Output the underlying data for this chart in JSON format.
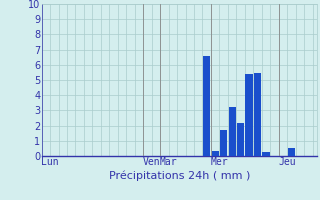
{
  "xlabel": "Précipitations 24h ( mm )",
  "background_color": "#d4eeee",
  "bar_color": "#1a4fcc",
  "ylim": [
    0,
    10
  ],
  "yticks": [
    0,
    1,
    2,
    3,
    4,
    5,
    6,
    7,
    8,
    9,
    10
  ],
  "day_labels": [
    "Lun",
    "Ven",
    "Mar",
    "Mer",
    "Jeu"
  ],
  "day_positions": [
    0.5,
    12.5,
    14.5,
    20.5,
    28.5
  ],
  "xlim": [
    -0.5,
    32
  ],
  "bars": [
    0,
    0,
    0,
    0,
    0,
    0,
    0,
    0,
    0,
    0,
    0,
    0,
    0,
    0,
    0,
    0,
    0,
    0,
    0,
    6.6,
    0.35,
    1.7,
    3.2,
    2.2,
    5.4,
    5.45,
    0.25,
    0,
    0,
    0.55,
    0,
    0
  ],
  "grid_color": "#aacccc",
  "tick_color": "#3333aa",
  "label_color": "#3333aa",
  "vline_color": "#888888",
  "vline_positions": [
    11.5,
    13.5,
    19.5,
    27.5
  ]
}
